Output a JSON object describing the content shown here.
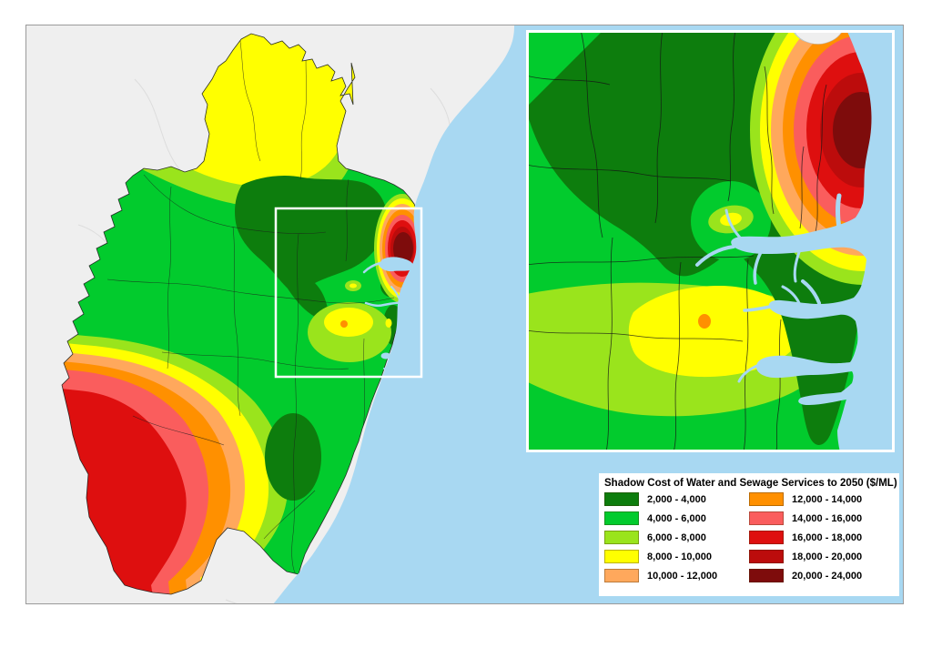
{
  "figure": {
    "type": "choropleth-contour-map",
    "description_visible_text_only": true
  },
  "map": {
    "frame_border_color": "#9a9a9a",
    "land_outside_color": "#efefef",
    "sea_color": "#a8d8f2",
    "boundary_line_color": "#1c1c1c",
    "inset_frame_color": "#ffffff",
    "inset_indicator_color": "#ffffff",
    "oval_center_color": "#e8f50a"
  },
  "legend": {
    "title": "Shadow Cost of Water and Sewage Services to 2050 ($/ML)",
    "background": "#ffffff",
    "classes": [
      {
        "label": "2,000 - 4,000",
        "color": "#0d7d0d"
      },
      {
        "label": "4,000 - 6,000",
        "color": "#02cb2d"
      },
      {
        "label": "6,000 - 8,000",
        "color": "#9ae41c"
      },
      {
        "label": "8,000 - 10,000",
        "color": "#ffff00"
      },
      {
        "label": "10,000 - 12,000",
        "color": "#ffa85c"
      },
      {
        "label": "12,000 - 14,000",
        "color": "#ff9000"
      },
      {
        "label": "14,000 - 16,000",
        "color": "#fa5d5d"
      },
      {
        "label": "16,000 - 18,000",
        "color": "#de0f0f"
      },
      {
        "label": "18,000 - 20,000",
        "color": "#bc0c0c"
      },
      {
        "label": "20,000 - 24,000",
        "color": "#7e0c0c"
      }
    ]
  }
}
